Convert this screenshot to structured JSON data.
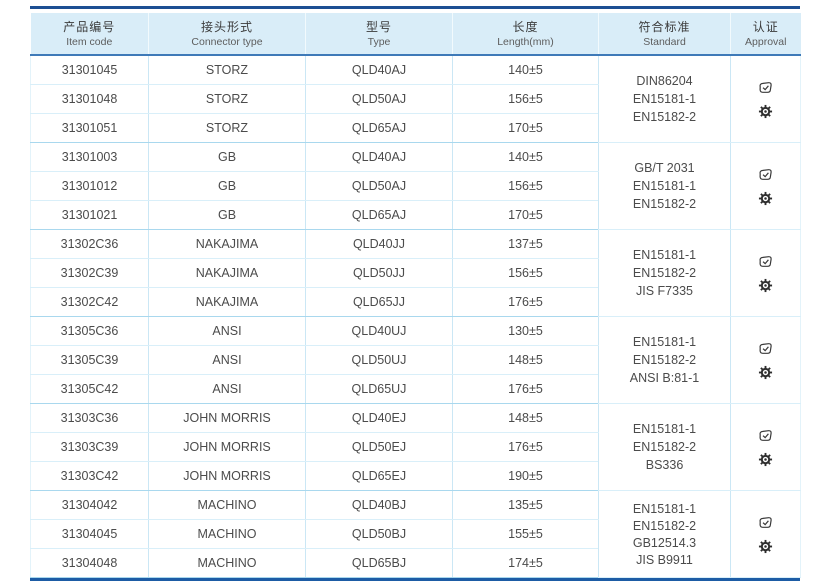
{
  "table": {
    "columns": [
      {
        "zh": "产品编号",
        "en": "Item code"
      },
      {
        "zh": "接头形式",
        "en": "Connector type"
      },
      {
        "zh": "型号",
        "en": "Type"
      },
      {
        "zh": "长度",
        "en": "Length(mm)"
      },
      {
        "zh": "符合标准",
        "en": "Standard"
      },
      {
        "zh": "认证",
        "en": "Approval"
      }
    ],
    "groups": [
      {
        "rows": [
          {
            "item_code": "31301045",
            "connector": "STORZ",
            "type": "QLD40AJ",
            "length": "140±5"
          },
          {
            "item_code": "31301048",
            "connector": "STORZ",
            "type": "QLD50AJ",
            "length": "156±5"
          },
          {
            "item_code": "31301051",
            "connector": "STORZ",
            "type": "QLD65AJ",
            "length": "170±5"
          }
        ],
        "standards": [
          "DIN86204",
          "EN15181-1",
          "EN15182-2"
        ],
        "approval_icons": [
          "certificate-icon",
          "gear-badge-icon"
        ]
      },
      {
        "rows": [
          {
            "item_code": "31301003",
            "connector": "GB",
            "type": "QLD40AJ",
            "length": "140±5"
          },
          {
            "item_code": "31301012",
            "connector": "GB",
            "type": "QLD50AJ",
            "length": "156±5"
          },
          {
            "item_code": "31301021",
            "connector": "GB",
            "type": "QLD65AJ",
            "length": "170±5"
          }
        ],
        "standards": [
          "GB/T 2031",
          "EN15181-1",
          "EN15182-2"
        ],
        "approval_icons": [
          "certificate-icon",
          "gear-badge-icon"
        ]
      },
      {
        "rows": [
          {
            "item_code": "31302C36",
            "connector": "NAKAJIMA",
            "type": "QLD40JJ",
            "length": "137±5"
          },
          {
            "item_code": "31302C39",
            "connector": "NAKAJIMA",
            "type": "QLD50JJ",
            "length": "156±5"
          },
          {
            "item_code": "31302C42",
            "connector": "NAKAJIMA",
            "type": "QLD65JJ",
            "length": "176±5"
          }
        ],
        "standards": [
          "EN15181-1",
          "EN15182-2",
          "JIS F7335"
        ],
        "approval_icons": [
          "certificate-icon",
          "gear-badge-icon"
        ]
      },
      {
        "rows": [
          {
            "item_code": "31305C36",
            "connector": "ANSI",
            "type": "QLD40UJ",
            "length": "130±5"
          },
          {
            "item_code": "31305C39",
            "connector": "ANSI",
            "type": "QLD50UJ",
            "length": "148±5"
          },
          {
            "item_code": "31305C42",
            "connector": "ANSI",
            "type": "QLD65UJ",
            "length": "176±5"
          }
        ],
        "standards": [
          "EN15181-1",
          "EN15182-2",
          "ANSI B:81-1"
        ],
        "approval_icons": [
          "certificate-icon",
          "gear-badge-icon"
        ]
      },
      {
        "rows": [
          {
            "item_code": "31303C36",
            "connector": "JOHN MORRIS",
            "type": "QLD40EJ",
            "length": "148±5"
          },
          {
            "item_code": "31303C39",
            "connector": "JOHN MORRIS",
            "type": "QLD50EJ",
            "length": "176±5"
          },
          {
            "item_code": "31303C42",
            "connector": "JOHN MORRIS",
            "type": "QLD65EJ",
            "length": "190±5"
          }
        ],
        "standards": [
          "EN15181-1",
          "EN15182-2",
          "BS336"
        ],
        "approval_icons": [
          "certificate-icon",
          "gear-badge-icon"
        ]
      },
      {
        "rows": [
          {
            "item_code": "31304042",
            "connector": "MACHINO",
            "type": "QLD40BJ",
            "length": "135±5"
          },
          {
            "item_code": "31304045",
            "connector": "MACHINO",
            "type": "QLD50BJ",
            "length": "155±5"
          },
          {
            "item_code": "31304048",
            "connector": "MACHINO",
            "type": "QLD65BJ",
            "length": "174±5"
          }
        ],
        "standards": [
          "EN15181-1",
          "EN15182-2",
          "GB12514.3",
          "JIS B9911"
        ],
        "approval_icons": [
          "certificate-icon",
          "gear-badge-icon"
        ]
      }
    ]
  },
  "colors": {
    "header_bg": "#d9edf8",
    "rule_navy": "#1d4f93",
    "grid_light_blue": "#cbe7f5",
    "text_gray": "#4b4b4b"
  }
}
